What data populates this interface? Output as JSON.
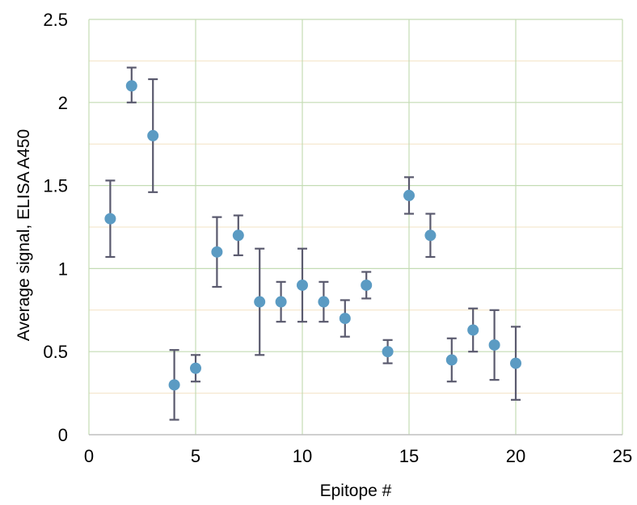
{
  "chart_data": {
    "type": "scatter",
    "title": "",
    "xlabel": "Epitope #",
    "ylabel": "Average signal, ELISA A450",
    "xlim": [
      0,
      25
    ],
    "ylim": [
      0,
      2.5
    ],
    "xticks": [
      0,
      5,
      10,
      15,
      20,
      25
    ],
    "yticks": [
      0,
      0.5,
      1,
      1.5,
      2,
      2.5
    ],
    "xtick_labels": [
      "0",
      "5",
      "10",
      "15",
      "20",
      "25"
    ],
    "ytick_labels": [
      "0",
      "0.5",
      "1",
      "1.5",
      "2",
      "2.5"
    ],
    "grid": true,
    "legend": "none",
    "colors": {
      "marker": "#5b9bc3",
      "errorbar": "#5a5a6e",
      "grid_major": "#c4dcb4",
      "grid_minor": "#f3e3c4"
    },
    "series": [
      {
        "x": [
          1,
          2,
          3,
          4,
          5,
          6,
          7,
          8,
          9,
          10,
          11,
          12,
          13,
          14,
          15,
          16,
          17,
          18,
          19,
          20
        ],
        "y": [
          1.3,
          2.1,
          1.8,
          0.3,
          0.4,
          1.1,
          1.2,
          0.8,
          0.8,
          0.9,
          0.8,
          0.7,
          0.9,
          0.5,
          1.44,
          1.2,
          0.45,
          0.63,
          0.54,
          0.43
        ],
        "error_low": [
          1.07,
          2.0,
          1.46,
          0.09,
          0.32,
          0.89,
          1.08,
          0.48,
          0.68,
          0.68,
          0.68,
          0.59,
          0.82,
          0.43,
          1.33,
          1.07,
          0.32,
          0.5,
          0.33,
          0.21
        ],
        "error_high": [
          1.53,
          2.21,
          2.14,
          0.51,
          0.48,
          1.31,
          1.32,
          1.12,
          0.92,
          1.12,
          0.92,
          0.81,
          0.98,
          0.57,
          1.55,
          1.33,
          0.58,
          0.76,
          0.75,
          0.65
        ]
      }
    ]
  }
}
